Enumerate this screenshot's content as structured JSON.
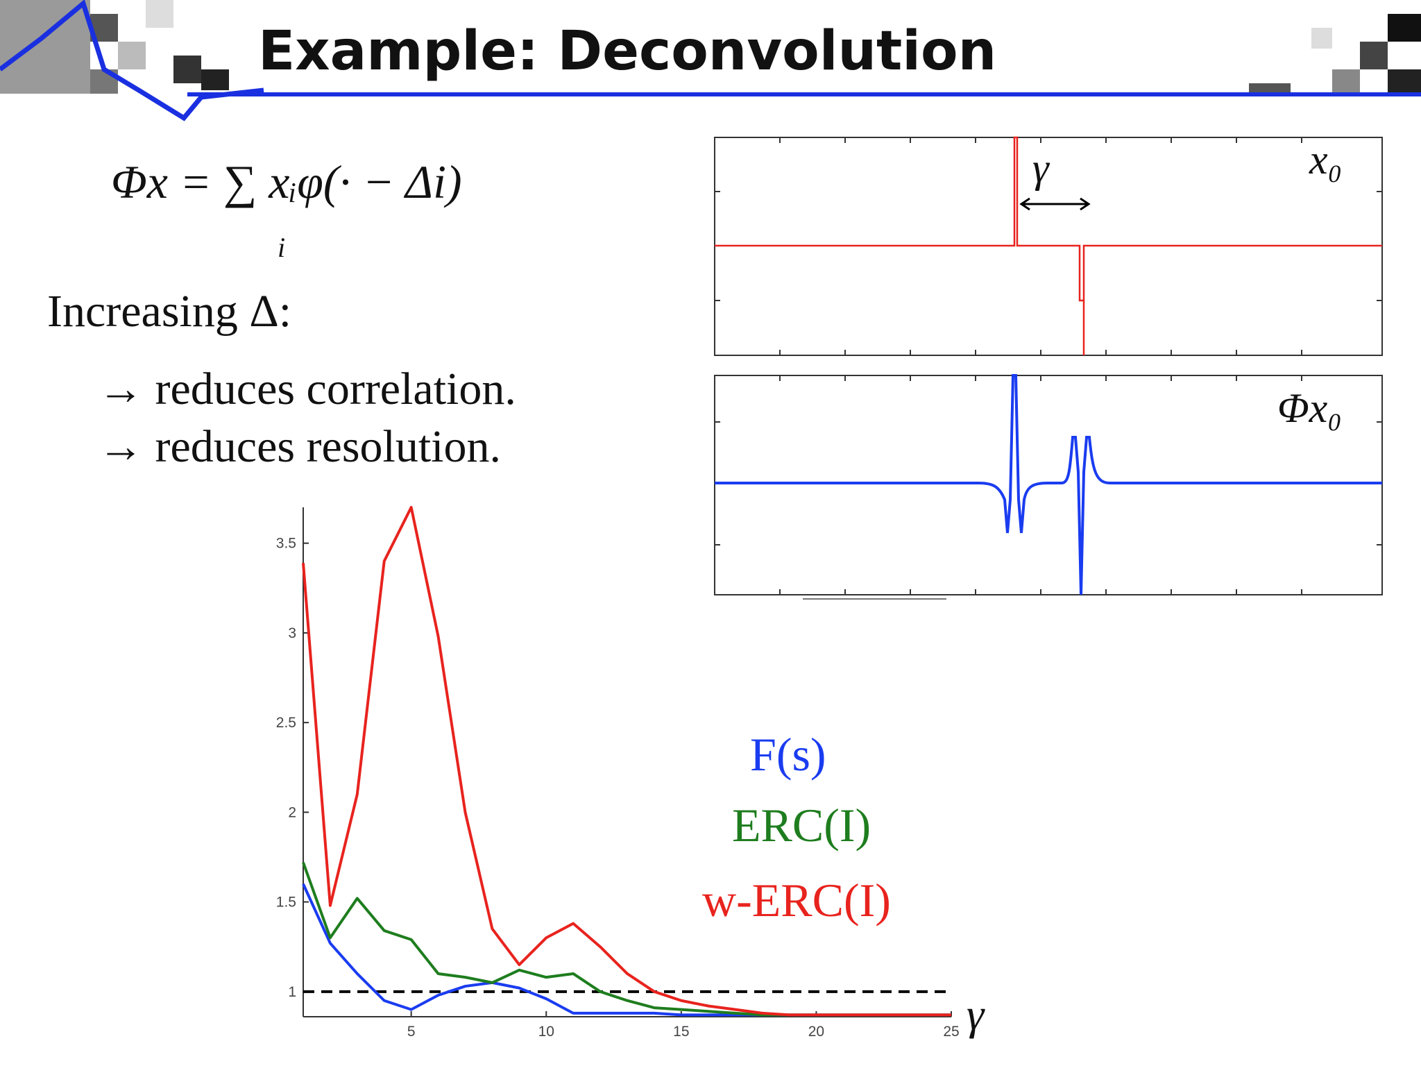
{
  "slide": {
    "title": "Example: Deconvolution",
    "formula": "Φx = ∑ xᵢφ(· − Δi)",
    "formula_index": "i",
    "lines": [
      "Increasing Δ:",
      "→ reduces correlation.",
      "→ reduces resolution."
    ]
  },
  "signals": {
    "top_label": "x₀",
    "bottom_label": "Φx₀",
    "gap_label": "γ"
  },
  "chart_data": {
    "type": "line",
    "xlabel": "γ",
    "x": [
      1,
      2,
      3,
      4,
      5,
      6,
      7,
      8,
      9,
      10,
      11,
      12,
      13,
      14,
      15,
      16,
      17,
      18,
      19,
      20,
      21,
      22,
      23,
      24,
      25
    ],
    "series": [
      {
        "name": "F(s)",
        "color": "#1a3cf0",
        "values": [
          1.6,
          1.27,
          1.1,
          0.95,
          0.9,
          0.98,
          1.03,
          1.05,
          1.02,
          0.96,
          0.88,
          0.88,
          0.88,
          0.88,
          0.87,
          0.87,
          0.87,
          0.87,
          0.87,
          0.87,
          0.87,
          0.87,
          0.87,
          0.87,
          0.87
        ]
      },
      {
        "name": "ERC(I)",
        "color": "#1e7d1e",
        "values": [
          1.72,
          1.3,
          1.52,
          1.34,
          1.29,
          1.1,
          1.08,
          1.05,
          1.12,
          1.08,
          1.1,
          1.0,
          0.95,
          0.91,
          0.9,
          0.89,
          0.88,
          0.87,
          0.87,
          0.87,
          0.87,
          0.87,
          0.87,
          0.87,
          0.87
        ]
      },
      {
        "name": "w-ERC(I)",
        "color": "#e8231e",
        "values": [
          3.39,
          1.48,
          2.1,
          3.4,
          3.7,
          2.98,
          2.0,
          1.35,
          1.15,
          1.3,
          1.38,
          1.25,
          1.1,
          1.0,
          0.95,
          0.92,
          0.9,
          0.88,
          0.87,
          0.87,
          0.87,
          0.87,
          0.87,
          0.87,
          0.87
        ]
      }
    ],
    "hline": 1,
    "xlim": [
      1,
      25
    ],
    "ylim": [
      0.86,
      3.7
    ],
    "xticks": [
      5,
      10,
      15,
      20,
      25
    ],
    "yticks": [
      1,
      1.5,
      2,
      2.5,
      3,
      3.5
    ]
  }
}
